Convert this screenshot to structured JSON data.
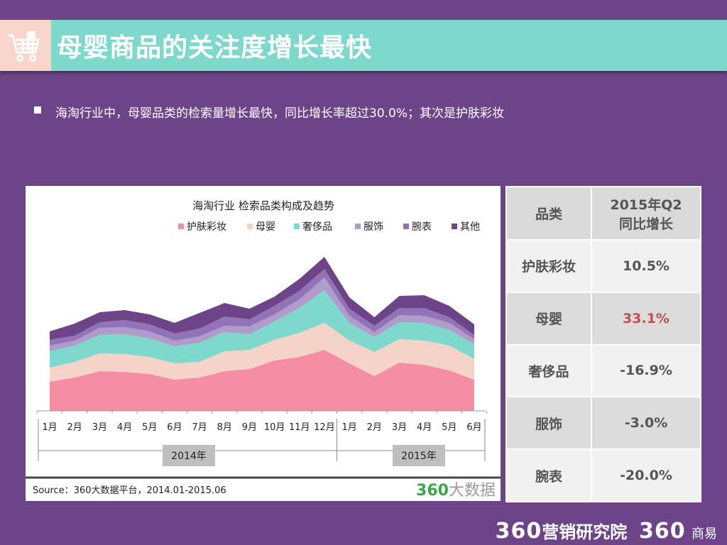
{
  "header": {
    "title": "母婴商品的关注度增长最快",
    "icon": "shopping-cart-icon"
  },
  "summary": "海淘行业中，母婴品类的检索量增长最快，同比增长率超过30.0%；其次是护肤彩妆",
  "chart_data": {
    "type": "area",
    "stacked": true,
    "title": "海淘行业 检索品类构成及趋势",
    "legend_position": "top",
    "grid": false,
    "categories": [
      "1月",
      "2月",
      "3月",
      "4月",
      "5月",
      "6月",
      "7月",
      "8月",
      "9月",
      "10月",
      "11月",
      "12月",
      "1月",
      "2月",
      "3月",
      "4月",
      "5月",
      "6月"
    ],
    "groups": [
      {
        "label": "2014年",
        "count": 12
      },
      {
        "label": "2015年",
        "count": 6
      }
    ],
    "series": [
      {
        "name": "护肤彩妆",
        "color": "#f68ea3",
        "values": [
          41,
          47,
          56,
          55,
          52,
          44,
          47,
          56,
          59,
          71,
          76,
          86,
          67,
          49,
          68,
          65,
          57,
          44
        ]
      },
      {
        "name": "母婴",
        "color": "#f6d3c8",
        "values": [
          20,
          22,
          25,
          25,
          24,
          23,
          22,
          28,
          27,
          29,
          34,
          38,
          32,
          34,
          33,
          34,
          35,
          29
        ]
      },
      {
        "name": "奢侈品",
        "color": "#7fd8cc",
        "values": [
          23,
          23,
          26,
          28,
          26,
          24,
          27,
          27,
          22,
          26,
          35,
          46,
          25,
          21,
          24,
          25,
          22,
          21
        ]
      },
      {
        "name": "服饰",
        "color": "#b09ccb",
        "values": [
          8,
          7,
          10,
          10,
          10,
          8,
          9,
          9,
          11,
          10,
          12,
          18,
          10,
          7,
          10,
          10,
          10,
          7
        ]
      },
      {
        "name": "腕表",
        "color": "#9273b7",
        "values": [
          8,
          7,
          8,
          10,
          10,
          10,
          11,
          13,
          10,
          12,
          12,
          12,
          10,
          9,
          10,
          11,
          8,
          6
        ]
      },
      {
        "name": "其他",
        "color": "#6c4487",
        "values": [
          12,
          17,
          14,
          14,
          14,
          15,
          22,
          19,
          15,
          13,
          17,
          17,
          16,
          12,
          17,
          18,
          16,
          15
        ]
      }
    ]
  },
  "source": "Source：360大数据平台，2014.01-2015.06",
  "source_logo": "360大数据",
  "table": {
    "headers": [
      "品类",
      "2015年Q2\n同比增长"
    ],
    "header_line1": "2015年Q2",
    "header_line2": "同比增长",
    "rows": [
      {
        "category": "护肤彩妆",
        "growth": "10.5%"
      },
      {
        "category": "母婴",
        "growth": "33.1%",
        "highlight": "#c0504d"
      },
      {
        "category": "奢侈品",
        "growth": "-16.9%"
      },
      {
        "category": "服饰",
        "growth": "-3.0%"
      },
      {
        "category": "腕表",
        "growth": "-20.0%"
      }
    ]
  },
  "footer": {
    "brand1_num": "360",
    "brand1_text": "营销研究院",
    "brand2_num": "360",
    "brand2_text": "商易"
  }
}
